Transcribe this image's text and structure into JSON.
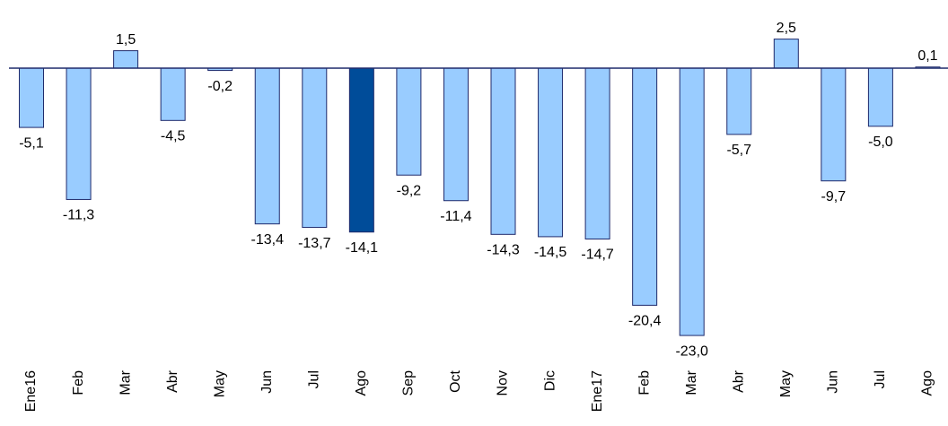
{
  "chart_data": {
    "type": "bar",
    "categories": [
      "Ene16",
      "Feb",
      "Mar",
      "Abr",
      "May",
      "Jun",
      "Jul",
      "Ago",
      "Sep",
      "Oct",
      "Nov",
      "Dic",
      "Ene17",
      "Feb",
      "Mar",
      "Abr",
      "May",
      "Jun",
      "Jul",
      "Ago"
    ],
    "values": [
      -5.1,
      -11.3,
      1.5,
      -4.5,
      -0.2,
      -13.4,
      -13.7,
      -14.1,
      -9.2,
      -11.4,
      -14.3,
      -14.5,
      -14.7,
      -20.4,
      -23.0,
      -5.7,
      2.5,
      -9.7,
      -5.0,
      0.1
    ],
    "value_labels": [
      "-5,1",
      "-11,3",
      "1,5",
      "-4,5",
      "-0,2",
      "-13,4",
      "-13,7",
      "-14,1",
      "-9,2",
      "-11,4",
      "-14,3",
      "-14,5",
      "-14,7",
      "-20,4",
      "-23,0",
      "-5,7",
      "2,5",
      "-9,7",
      "-5,0",
      "0,1"
    ],
    "colors": [
      "#99ccff",
      "#99ccff",
      "#99ccff",
      "#99ccff",
      "#99ccff",
      "#99ccff",
      "#99ccff",
      "#004c99",
      "#99ccff",
      "#99ccff",
      "#99ccff",
      "#99ccff",
      "#99ccff",
      "#99ccff",
      "#99ccff",
      "#99ccff",
      "#99ccff",
      "#99ccff",
      "#99ccff",
      "#99ccff"
    ],
    "edge_color": "#1f2a6b"
  }
}
